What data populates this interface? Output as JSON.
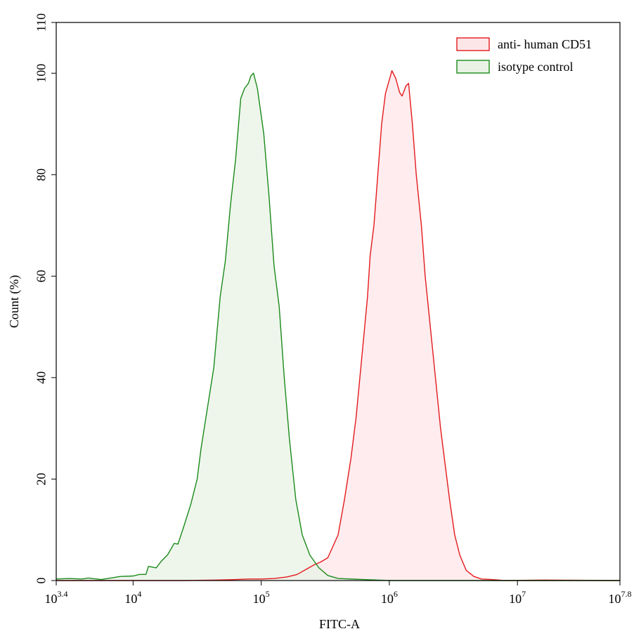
{
  "chart_data": {
    "type": "area",
    "xlabel": "FITC-A",
    "ylabel": "Count (%)",
    "x_scale": "log10",
    "xlim": [
      3.4,
      7.8
    ],
    "ylim": [
      0,
      110
    ],
    "y_ticks": [
      0,
      20,
      40,
      60,
      80,
      100,
      110
    ],
    "x_ticks": [
      {
        "base": "10",
        "exp": "3.4",
        "value": 3.4
      },
      {
        "base": "10",
        "exp": "4",
        "value": 4
      },
      {
        "base": "10",
        "exp": "5",
        "value": 5
      },
      {
        "base": "10",
        "exp": "6",
        "value": 6
      },
      {
        "base": "10",
        "exp": "7",
        "value": 7
      },
      {
        "base": "10",
        "exp": "7.8",
        "value": 7.8
      }
    ],
    "legend_position": "top-right",
    "grid": false,
    "series": [
      {
        "name": "anti- human CD51",
        "line_color": "#e41a1c",
        "fill_color": "#fde6e8",
        "points": [
          [
            3.4,
            0
          ],
          [
            4.4,
            0
          ],
          [
            4.65,
            0.1
          ],
          [
            4.8,
            0.2
          ],
          [
            4.9,
            0.3
          ],
          [
            5.0,
            0.3
          ],
          [
            5.1,
            0.4
          ],
          [
            5.2,
            0.7
          ],
          [
            5.28,
            1.2
          ],
          [
            5.35,
            2.2
          ],
          [
            5.42,
            3.2
          ],
          [
            5.46,
            3.6
          ],
          [
            5.52,
            4.5
          ],
          [
            5.6,
            9
          ],
          [
            5.65,
            16
          ],
          [
            5.7,
            24
          ],
          [
            5.74,
            32
          ],
          [
            5.77,
            40
          ],
          [
            5.8,
            48
          ],
          [
            5.83,
            56
          ],
          [
            5.85,
            64
          ],
          [
            5.88,
            70
          ],
          [
            5.91,
            80
          ],
          [
            5.94,
            90
          ],
          [
            5.97,
            96
          ],
          [
            6.02,
            100.5
          ],
          [
            6.05,
            99
          ],
          [
            6.08,
            96.2
          ],
          [
            6.1,
            95.5
          ],
          [
            6.13,
            97.5
          ],
          [
            6.15,
            98
          ],
          [
            6.18,
            90
          ],
          [
            6.21,
            80
          ],
          [
            6.25,
            70
          ],
          [
            6.28,
            60
          ],
          [
            6.32,
            50
          ],
          [
            6.36,
            40
          ],
          [
            6.4,
            30
          ],
          [
            6.44,
            22
          ],
          [
            6.47,
            16
          ],
          [
            6.51,
            9
          ],
          [
            6.55,
            5
          ],
          [
            6.6,
            2
          ],
          [
            6.66,
            0.8
          ],
          [
            6.72,
            0.3
          ],
          [
            6.8,
            0.2
          ],
          [
            6.9,
            0
          ],
          [
            7.2,
            0.1
          ],
          [
            7.8,
            0
          ]
        ]
      },
      {
        "name": "isotype control",
        "line_color": "#1a8a1a",
        "fill_color": "#e8f3e6",
        "points": [
          [
            3.4,
            0.3
          ],
          [
            3.5,
            0.4
          ],
          [
            3.6,
            0.3
          ],
          [
            3.65,
            0.5
          ],
          [
            3.75,
            0.2
          ],
          [
            3.85,
            0.6
          ],
          [
            3.9,
            0.8
          ],
          [
            4.0,
            0.9
          ],
          [
            4.05,
            1.2
          ],
          [
            4.1,
            1.2
          ],
          [
            4.12,
            2.8
          ],
          [
            4.18,
            2.5
          ],
          [
            4.22,
            3.8
          ],
          [
            4.27,
            5.1
          ],
          [
            4.32,
            7.3
          ],
          [
            4.35,
            7.2
          ],
          [
            4.4,
            11
          ],
          [
            4.45,
            15
          ],
          [
            4.5,
            20
          ],
          [
            4.53,
            26
          ],
          [
            4.58,
            34
          ],
          [
            4.63,
            42
          ],
          [
            4.68,
            56
          ],
          [
            4.72,
            63
          ],
          [
            4.76,
            74
          ],
          [
            4.8,
            83
          ],
          [
            4.84,
            95
          ],
          [
            4.87,
            97
          ],
          [
            4.9,
            98
          ],
          [
            4.92,
            99.5
          ],
          [
            4.94,
            100
          ],
          [
            4.97,
            97
          ],
          [
            5.02,
            88
          ],
          [
            5.06,
            76
          ],
          [
            5.1,
            62
          ],
          [
            5.14,
            54
          ],
          [
            5.18,
            40
          ],
          [
            5.22,
            28
          ],
          [
            5.27,
            16
          ],
          [
            5.32,
            9
          ],
          [
            5.38,
            5
          ],
          [
            5.45,
            2.5
          ],
          [
            5.52,
            1.0
          ],
          [
            5.6,
            0.4
          ],
          [
            5.8,
            0.2
          ],
          [
            6.0,
            0
          ],
          [
            7.8,
            0
          ]
        ]
      }
    ]
  }
}
